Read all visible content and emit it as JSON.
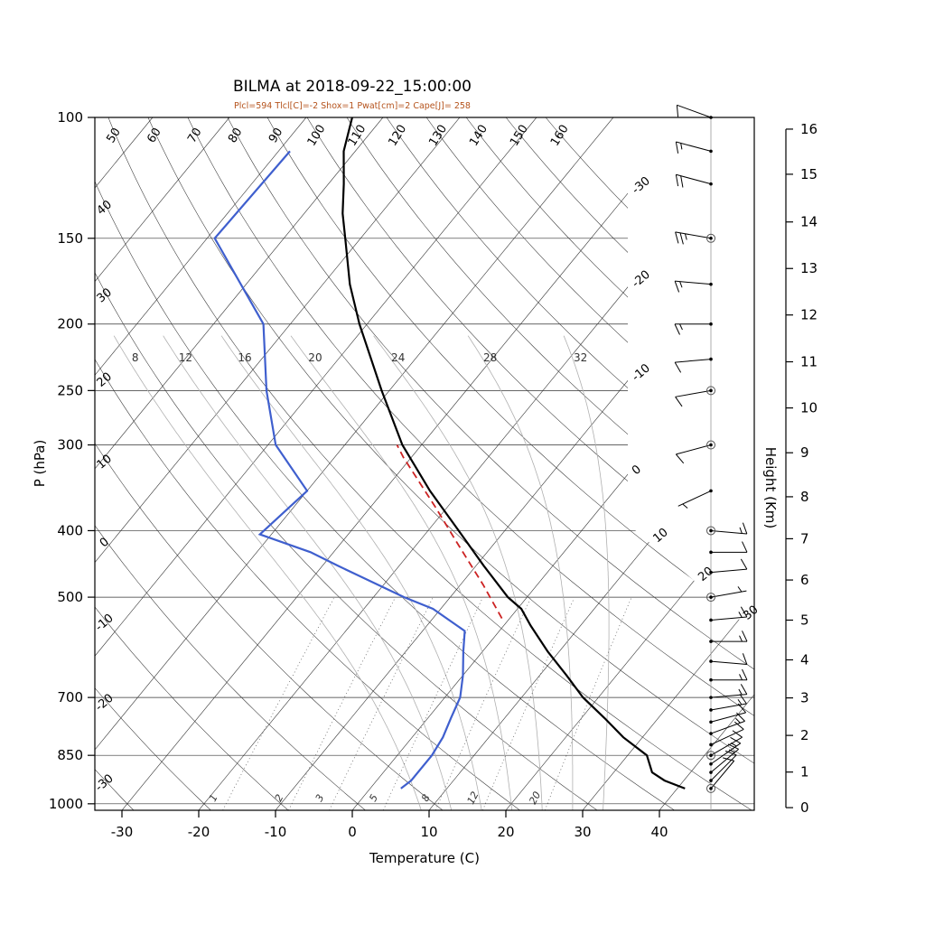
{
  "title": "BILMA at 2018-09-22_15:00:00",
  "params_line": "Plcl=594 Tlcl[C]=-2 Shox=1 Pwat[cm]=2 Cape[J]= 258",
  "axis_labels": {
    "pressure": "P (hPa)",
    "temperature": "Temperature (C)",
    "height": "Height (Km)"
  },
  "colors": {
    "temperature": "#000000",
    "dewpoint": "#3f5fce",
    "parcel": "#cc2222",
    "params": "#b5531c",
    "grid": "#333333",
    "moist_adiabat": "#b0b0b0",
    "mixing_ratio": "#555555"
  },
  "chart_data": {
    "type": "skewt-log-p",
    "station": "BILMA",
    "time": "2018-09-22_15:00:00",
    "pressure_range_hpa": [
      100,
      1022
    ],
    "pressure_ticks_hpa": [
      100,
      150,
      200,
      250,
      300,
      400,
      500,
      700,
      850,
      1000
    ],
    "temperature_ticks_c": [
      -30,
      -20,
      -10,
      0,
      10,
      20,
      30,
      40
    ],
    "height_ticks_km": [
      0,
      1,
      2,
      3,
      4,
      5,
      6,
      7,
      8,
      9,
      10,
      11,
      12,
      13,
      14,
      15,
      16
    ],
    "height_km_pressures_hpa": [
      1013,
      899,
      795,
      701,
      617,
      540,
      472,
      411,
      357,
      308,
      265,
      227,
      194,
      166,
      142,
      121,
      104
    ],
    "isotherms_c": {
      "start": -120,
      "end": 40,
      "step": 10
    },
    "isotherm_edge_labels_c": [
      -30,
      -20,
      -10,
      0,
      10,
      20,
      30
    ],
    "dry_adiabats_c": {
      "start": -30,
      "end": 160,
      "step": 10
    },
    "moist_adiabats_c": [
      8,
      12,
      16,
      20,
      24,
      28,
      32
    ],
    "mixing_ratio_lines_gkg": [
      1,
      2,
      3,
      5,
      8,
      12,
      20
    ],
    "temperature_profile": [
      [
        950,
        41
      ],
      [
        925,
        37.5
      ],
      [
        900,
        35
      ],
      [
        850,
        32.5
      ],
      [
        800,
        27.5
      ],
      [
        750,
        23
      ],
      [
        700,
        18
      ],
      [
        650,
        13.5
      ],
      [
        600,
        8.5
      ],
      [
        550,
        3.5
      ],
      [
        520,
        0.5
      ],
      [
        500,
        -2.5
      ],
      [
        450,
        -9
      ],
      [
        400,
        -16
      ],
      [
        350,
        -24
      ],
      [
        300,
        -32.5
      ],
      [
        250,
        -41
      ],
      [
        200,
        -51
      ],
      [
        175,
        -56.5
      ],
      [
        150,
        -62
      ],
      [
        138,
        -65
      ],
      [
        125,
        -68
      ],
      [
        112,
        -71.5
      ],
      [
        100,
        -74
      ]
    ],
    "dewpoint_profile": [
      [
        950,
        4
      ],
      [
        925,
        4.5
      ],
      [
        850,
        4.5
      ],
      [
        800,
        4
      ],
      [
        750,
        3
      ],
      [
        700,
        2
      ],
      [
        650,
        0
      ],
      [
        600,
        -2.5
      ],
      [
        560,
        -4.5
      ],
      [
        520,
        -11
      ],
      [
        500,
        -16
      ],
      [
        450,
        -28
      ],
      [
        430,
        -33
      ],
      [
        405,
        -41.5
      ],
      [
        350,
        -40
      ],
      [
        300,
        -49
      ],
      [
        250,
        -56
      ],
      [
        200,
        -63.5
      ],
      [
        150,
        -79
      ],
      [
        112,
        -78.5
      ]
    ],
    "parcel_path": [
      [
        537,
        -1
      ],
      [
        480,
        -7
      ],
      [
        416,
        -15
      ],
      [
        370,
        -21.5
      ],
      [
        313,
        -31
      ],
      [
        300,
        -33.2
      ]
    ],
    "wind_barbs": [
      {
        "p": 100,
        "dir_deg": 290,
        "speed_kt": 10
      },
      {
        "p": 112,
        "dir_deg": 285,
        "speed_kt": 15
      },
      {
        "p": 125,
        "dir_deg": 285,
        "speed_kt": 20
      },
      {
        "p": 150,
        "dir_deg": 280,
        "speed_kt": 25
      },
      {
        "p": 175,
        "dir_deg": 275,
        "speed_kt": 15
      },
      {
        "p": 200,
        "dir_deg": 270,
        "speed_kt": 15
      },
      {
        "p": 225,
        "dir_deg": 265,
        "speed_kt": 10
      },
      {
        "p": 250,
        "dir_deg": 260,
        "speed_kt": 10
      },
      {
        "p": 300,
        "dir_deg": 255,
        "speed_kt": 10
      },
      {
        "p": 350,
        "dir_deg": 245,
        "speed_kt": 5
      },
      {
        "p": 400,
        "dir_deg": 95,
        "speed_kt": 15
      },
      {
        "p": 430,
        "dir_deg": 90,
        "speed_kt": 10
      },
      {
        "p": 460,
        "dir_deg": 85,
        "speed_kt": 10
      },
      {
        "p": 500,
        "dir_deg": 80,
        "speed_kt": 5
      },
      {
        "p": 540,
        "dir_deg": 85,
        "speed_kt": 15
      },
      {
        "p": 580,
        "dir_deg": 90,
        "speed_kt": 15
      },
      {
        "p": 620,
        "dir_deg": 95,
        "speed_kt": 10
      },
      {
        "p": 660,
        "dir_deg": 90,
        "speed_kt": 15
      },
      {
        "p": 700,
        "dir_deg": 85,
        "speed_kt": 15
      },
      {
        "p": 730,
        "dir_deg": 80,
        "speed_kt": 15
      },
      {
        "p": 760,
        "dir_deg": 75,
        "speed_kt": 10
      },
      {
        "p": 790,
        "dir_deg": 70,
        "speed_kt": 15
      },
      {
        "p": 820,
        "dir_deg": 65,
        "speed_kt": 10
      },
      {
        "p": 850,
        "dir_deg": 60,
        "speed_kt": 10
      },
      {
        "p": 875,
        "dir_deg": 55,
        "speed_kt": 15
      },
      {
        "p": 900,
        "dir_deg": 50,
        "speed_kt": 15
      },
      {
        "p": 925,
        "dir_deg": 45,
        "speed_kt": 10
      },
      {
        "p": 950,
        "dir_deg": 40,
        "speed_kt": 10
      }
    ],
    "circle_levels_hpa": [
      150,
      250,
      300,
      400,
      500,
      850,
      950
    ]
  }
}
